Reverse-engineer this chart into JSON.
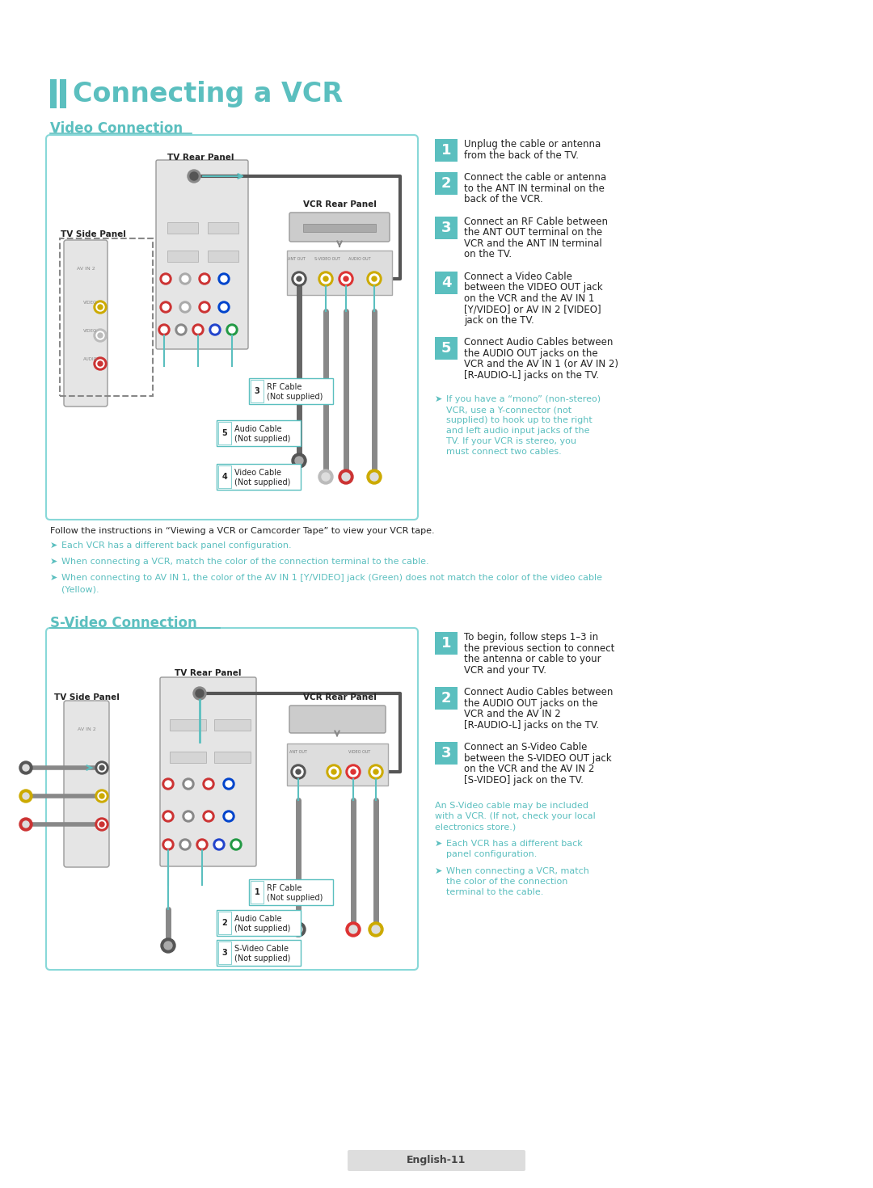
{
  "page_bg": "#ffffff",
  "title": "Connecting a VCR",
  "title_color": "#5bbfbf",
  "section1_title": "Video Connection",
  "section2_title": "S-Video Connection",
  "teal": "#5bbfbf",
  "box_border_color": "#88d8d8",
  "step_box_color": "#5bbfbf",
  "dark": "#222222",
  "note_color": "#5bbfbf",
  "footer_bg": "#e0e0e0",
  "footer_text": "English-11",
  "steps1": [
    {
      "num": "1",
      "text": "Unplug the cable or antenna\nfrom the back of the TV."
    },
    {
      "num": "2",
      "text": "Connect the cable or antenna\nto the ANT IN terminal on the\nback of the VCR."
    },
    {
      "num": "3",
      "text": "Connect an RF Cable between\nthe ANT OUT terminal on the\nVCR and the ANT IN terminal\non the TV."
    },
    {
      "num": "4",
      "text": "Connect a Video Cable\nbetween the VIDEO OUT jack\non the VCR and the AV IN 1\n[Y/VIDEO] or AV IN 2 [VIDEO]\njack on the TV."
    },
    {
      "num": "5",
      "text": "Connect Audio Cables between\nthe AUDIO OUT jacks on the\nVCR and the AV IN 1 (or AV IN 2)\n[R-AUDIO-L] jacks on the TV."
    }
  ],
  "note1": "If you have a “mono” (non-stereo)\nVCR, use a Y-connector (not\nsupplied) to hook up to the right\nand left audio input jacks of the\nTV. If your VCR is stereo, you\nmust connect two cables.",
  "bullets1_line0": "Follow the instructions in “Viewing a VCR or Camcorder Tape” to view your VCR tape.",
  "bullets1": [
    "Each VCR has a different back panel configuration.",
    "When connecting a VCR, match the color of the connection terminal to the cable.",
    "When connecting to AV IN 1, the color of the AV IN 1 [Y/VIDEO] jack (Green) does not match the color of the video cable\n(Yellow)."
  ],
  "steps2": [
    {
      "num": "1",
      "text": "To begin, follow steps 1–3 in\nthe previous section to connect\nthe antenna or cable to your\nVCR and your TV."
    },
    {
      "num": "2",
      "text": "Connect Audio Cables between\nthe AUDIO OUT jacks on the\nVCR and the AV IN 2\n[R-AUDIO-L] jacks on the TV."
    },
    {
      "num": "3",
      "text": "Connect an S-Video Cable\nbetween the S-VIDEO OUT jack\non the VCR and the AV IN 2\n[S-VIDEO] jack on the TV."
    }
  ],
  "note2_intro": "An S-Video cable may be included\nwith a VCR. (If not, check your local\nelectronics store.)",
  "note2_items": [
    "Each VCR has a different back\npanel configuration.",
    "When connecting a VCR, match\nthe color of the connection\nterminal to the cable."
  ],
  "diag1": {
    "tv_side_label": "TV Side Panel",
    "tv_rear_label": "TV Rear Panel",
    "vcr_rear_label": "VCR Rear Panel",
    "rf_num": "3",
    "rf_label": "RF Cable\n(Not supplied)",
    "audio_num": "5",
    "audio_label": "Audio Cable\n(Not supplied)",
    "video_num": "4",
    "video_label": "Video Cable\n(Not supplied)"
  },
  "diag2": {
    "tv_side_label": "TV Side Panel",
    "tv_rear_label": "TV Rear Panel",
    "vcr_rear_label": "VCR Rear Panel",
    "rf_num": "1",
    "rf_label": "RF Cable\n(Not supplied)",
    "audio_num": "2",
    "audio_label": "Audio Cable\n(Not supplied)",
    "svideo_num": "3",
    "svideo_label": "S-Video Cable\n(Not supplied)"
  }
}
